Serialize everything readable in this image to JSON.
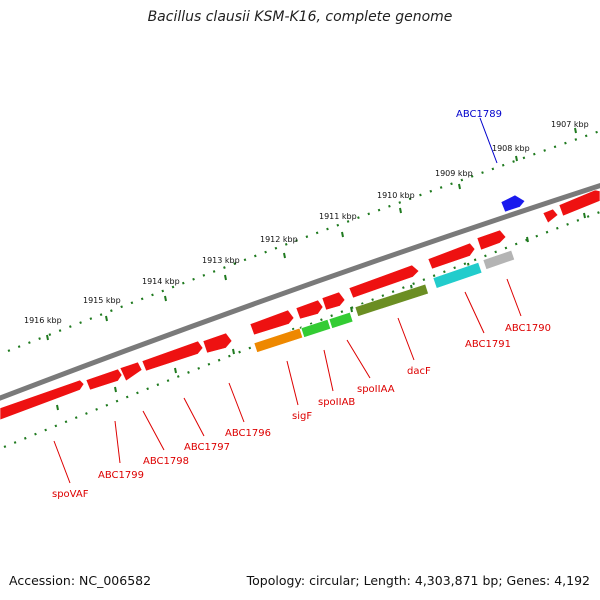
{
  "title": "Bacillus clausii KSM-K16, complete genome",
  "footer": {
    "accession": "Accession: NC_006582",
    "topology": "Topology: circular; Length: 4,303,871 bp; Genes: 4,192"
  },
  "colors": {
    "backbone": "#7a7a7a",
    "ticks": "#1f7a1f",
    "gene_red": "#ee1111",
    "gene_blue": "#1a1aee",
    "gene_orange": "#ee8800",
    "gene_green": "#33cc33",
    "gene_olive": "#6b8e23",
    "gene_cyan": "#22cccc",
    "gene_gray": "#b4b4b4",
    "label_red": "#dd0000",
    "label_blue": "#0000cc"
  },
  "kbp_labels": [
    "1907 kbp",
    "1908 kbp",
    "1909 kbp",
    "1910 kbp",
    "1911 kbp",
    "1912 kbp",
    "1913 kbp",
    "1914 kbp",
    "1915 kbp",
    "1916 kbp"
  ],
  "gene_labels": [
    "ABC1789",
    "ABC1790",
    "ABC1791",
    "dacF",
    "spoIIAA",
    "spoIIAB",
    "sigF",
    "ABC1796",
    "ABC1797",
    "ABC1798",
    "ABC1799",
    "spoVAF"
  ],
  "gene_label_colors": [
    "blue",
    "red",
    "red",
    "red",
    "red",
    "red",
    "red",
    "red",
    "red",
    "red",
    "red",
    "red"
  ]
}
